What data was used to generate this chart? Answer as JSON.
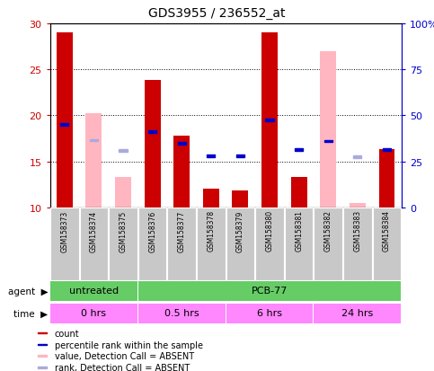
{
  "title": "GDS3955 / 236552_at",
  "samples": [
    "GSM158373",
    "GSM158374",
    "GSM158375",
    "GSM158376",
    "GSM158377",
    "GSM158378",
    "GSM158379",
    "GSM158380",
    "GSM158381",
    "GSM158382",
    "GSM158383",
    "GSM158384"
  ],
  "red_bars": [
    29.0,
    null,
    null,
    23.8,
    17.8,
    12.0,
    11.8,
    29.0,
    13.3,
    null,
    null,
    16.3
  ],
  "pink_bars": [
    null,
    20.2,
    13.3,
    null,
    null,
    null,
    null,
    null,
    null,
    27.0,
    10.5,
    null
  ],
  "blue_squares": [
    19.0,
    null,
    null,
    18.2,
    17.0,
    15.6,
    15.6,
    19.5,
    16.3,
    17.2,
    null,
    16.3
  ],
  "light_blue_squares": [
    null,
    17.3,
    16.2,
    null,
    null,
    null,
    null,
    null,
    null,
    null,
    15.5,
    null
  ],
  "ylim": [
    10,
    30
  ],
  "yticks": [
    10,
    15,
    20,
    25,
    30
  ],
  "y2ticks_labels": [
    "0",
    "25",
    "50",
    "75",
    "100%"
  ],
  "y2ticks_vals": [
    10,
    15,
    20,
    25,
    30
  ],
  "red_color": "#CC0000",
  "pink_color": "#FFB6C1",
  "blue_color": "#0000CC",
  "light_blue_color": "#AAAADD",
  "axis_color_left": "#CC0000",
  "axis_color_right": "#0000CC",
  "sample_box_color": "#C8C8C8",
  "green_color": "#66CC66",
  "pink_time_color": "#FF88FF",
  "bar_width": 0.55
}
